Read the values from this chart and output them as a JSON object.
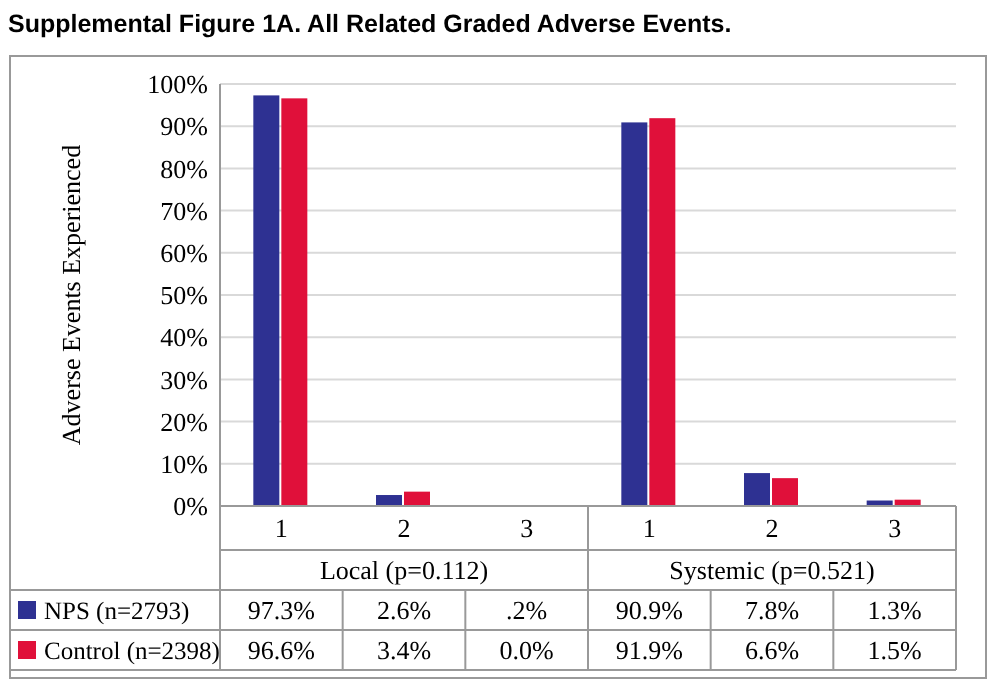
{
  "chart_data": {
    "type": "bar",
    "title": "Supplemental Figure 1A. All Related Graded Adverse Events.",
    "ylabel": "Adverse Events Experienced",
    "categories": [
      "1",
      "2",
      "3",
      "1",
      "2",
      "3"
    ],
    "annotations": [
      "Local (p=0.112)",
      "Systemic (p=0.521)"
    ],
    "series": [
      {
        "name": "NPS (n=2793)",
        "color": "#2e3192",
        "values": [
          97.3,
          2.6,
          0.2,
          90.9,
          7.8,
          1.3
        ],
        "value_labels": [
          "97.3%",
          "2.6%",
          ".2%",
          "90.9%",
          "7.8%",
          "1.3%"
        ]
      },
      {
        "name": "Control (n=2398)",
        "color": "#e0103a",
        "values": [
          96.6,
          3.4,
          0.0,
          91.9,
          6.6,
          1.5
        ],
        "value_labels": [
          "96.6%",
          "3.4%",
          "0.0%",
          "91.9%",
          "6.6%",
          "1.5%"
        ]
      }
    ],
    "ylim": [
      0,
      100
    ],
    "yticks": [
      {
        "value": 0,
        "label": "0%"
      },
      {
        "value": 10,
        "label": "10%"
      },
      {
        "value": 20,
        "label": "20%"
      },
      {
        "value": 30,
        "label": "30%"
      },
      {
        "value": 40,
        "label": "40%"
      },
      {
        "value": 50,
        "label": "50%"
      },
      {
        "value": 60,
        "label": "60%"
      },
      {
        "value": 70,
        "label": "70%"
      },
      {
        "value": 80,
        "label": "80%"
      },
      {
        "value": 90,
        "label": "90%"
      },
      {
        "value": 100,
        "label": "100%"
      }
    ],
    "grid": "y",
    "legend": "bottom"
  }
}
